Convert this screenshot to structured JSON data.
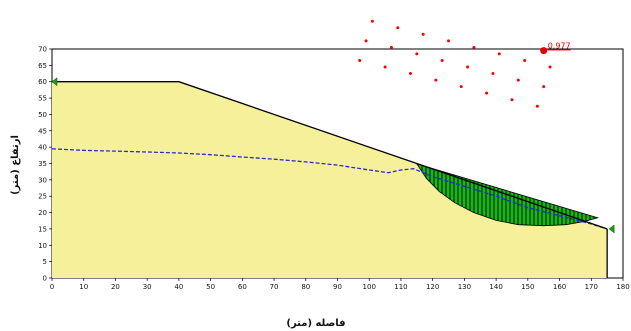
{
  "page_title_partial": "",
  "colors": {
    "slope_fill": "#f7f09a",
    "sliding_mass": "#16b816",
    "water_table": "#2a2ad8",
    "surface": "#000000",
    "grid_centers": "#ff0000",
    "critical_center": "#e00000"
  },
  "chart_data": {
    "type": "area",
    "title": "",
    "xlabel": "فاصله (متر)",
    "ylabel": "ارتفاع (متر)",
    "xlim": [
      0,
      180
    ],
    "ylim": [
      0,
      70
    ],
    "x_ticks": [
      0,
      10,
      20,
      30,
      40,
      50,
      60,
      70,
      80,
      90,
      100,
      110,
      120,
      130,
      140,
      150,
      160,
      170,
      180
    ],
    "y_ticks": [
      0,
      5,
      10,
      15,
      20,
      25,
      30,
      35,
      40,
      45,
      50,
      55,
      60,
      65,
      70
    ],
    "grid": false,
    "ground_surface": [
      [
        0,
        60
      ],
      [
        40,
        60
      ],
      [
        175,
        15
      ],
      [
        175,
        0
      ]
    ],
    "water_table": [
      [
        0,
        39.5
      ],
      [
        10,
        39
      ],
      [
        20,
        38.8
      ],
      [
        30,
        38.5
      ],
      [
        40,
        38.2
      ],
      [
        50,
        37.7
      ],
      [
        60,
        37
      ],
      [
        70,
        36.3
      ],
      [
        80,
        35.5
      ],
      [
        90,
        34.5
      ],
      [
        100,
        33
      ],
      [
        106,
        32.2
      ],
      [
        110,
        33
      ],
      [
        114,
        33.4
      ],
      [
        120,
        31
      ],
      [
        130,
        28
      ],
      [
        140,
        25
      ],
      [
        150,
        21.5
      ],
      [
        160,
        19
      ],
      [
        170,
        16.5
      ],
      [
        175,
        15
      ]
    ],
    "slip_surface": [
      [
        115,
        34.9
      ],
      [
        118,
        30.5
      ],
      [
        122,
        26.5
      ],
      [
        127,
        23
      ],
      [
        133,
        20
      ],
      [
        140,
        17.6
      ],
      [
        147,
        16.3
      ],
      [
        155,
        16
      ],
      [
        162,
        16.3
      ],
      [
        168,
        17.3
      ],
      [
        172,
        18.4
      ]
    ],
    "critical_center": [
      155,
      69.5
    ],
    "factor_of_safety": "0.977",
    "center_grid": [
      [
        97,
        66.5
      ],
      [
        99,
        72.5
      ],
      [
        101,
        78.5
      ],
      [
        105,
        64.5
      ],
      [
        107,
        70.5
      ],
      [
        109,
        76.5
      ],
      [
        113,
        62.5
      ],
      [
        115,
        68.5
      ],
      [
        117,
        74.5
      ],
      [
        121,
        60.5
      ],
      [
        123,
        66.5
      ],
      [
        125,
        72.5
      ],
      [
        129,
        58.5
      ],
      [
        131,
        64.5
      ],
      [
        133,
        70.5
      ],
      [
        137,
        56.5
      ],
      [
        139,
        62.5
      ],
      [
        141,
        68.5
      ],
      [
        145,
        54.5
      ],
      [
        147,
        60.5
      ],
      [
        149,
        66.5
      ],
      [
        153,
        52.5
      ],
      [
        155,
        58.5
      ],
      [
        157,
        64.5
      ]
    ]
  }
}
